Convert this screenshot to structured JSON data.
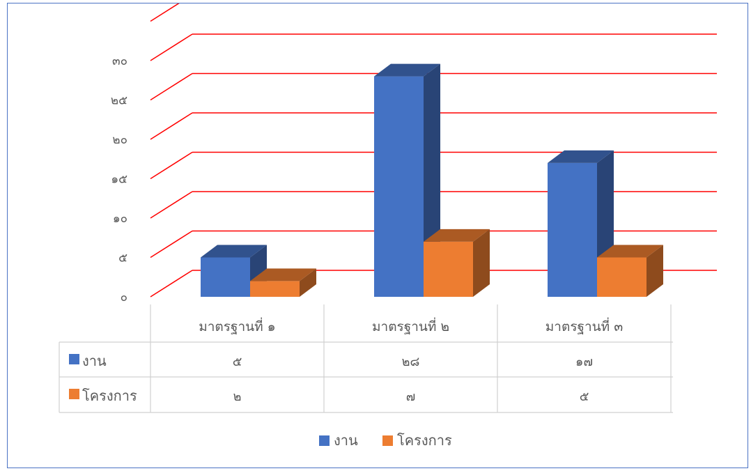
{
  "chart_data": {
    "type": "bar",
    "title": "",
    "xlabel": "",
    "ylabel": "",
    "categories": [
      "มาตรฐานที่ ๑",
      "มาตรฐานที่ ๒",
      "มาตรฐานที่ ๓"
    ],
    "series": [
      {
        "name": "งาน",
        "values": [
          5,
          28,
          17
        ],
        "value_labels": [
          "๕",
          "๒๘",
          "๑๗"
        ],
        "color": "#4472c4"
      },
      {
        "name": "โครงการ",
        "values": [
          2,
          7,
          5
        ],
        "value_labels": [
          "๒",
          "๗",
          "๕"
        ],
        "color": "#ed7d31"
      }
    ],
    "ylim": [
      0,
      30
    ],
    "y_ticks": [
      0,
      5,
      10,
      15,
      20,
      25,
      30
    ],
    "y_tick_labels": [
      "๐",
      "๕",
      "๑๐",
      "๑๕",
      "๒๐",
      "๒๕",
      "๓๐"
    ],
    "grid": true,
    "grid_color": "#ff0000",
    "data_table": true,
    "legend_position": "bottom",
    "style": "3d-clustered-column"
  }
}
